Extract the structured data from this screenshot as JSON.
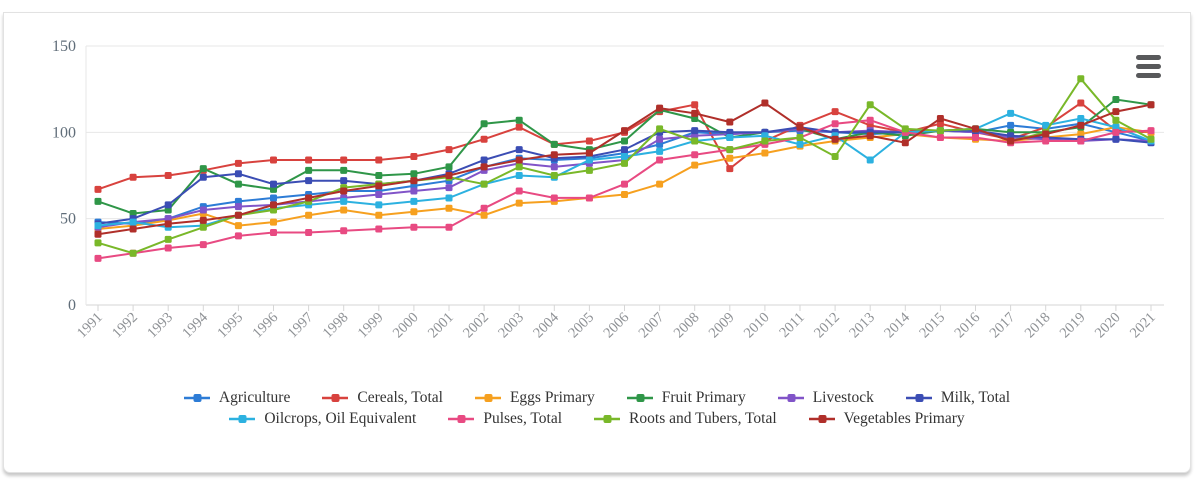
{
  "card": {
    "background": "#ffffff",
    "border_color": "#e2e2e2"
  },
  "menu": {
    "icon": "hamburger-icon",
    "color": "#58595b"
  },
  "axis": {
    "y_label_color": "#606d79",
    "x_label_color": "#8f9296",
    "grid_color": "#e7e7e7",
    "axis_line_color": "#d6d6d6"
  },
  "chart_data": {
    "type": "line",
    "title": "",
    "xlabel": "",
    "ylabel": "",
    "ylim": [
      0,
      150
    ],
    "yticks": [
      0,
      50,
      100,
      150
    ],
    "grid": true,
    "legend_position": "bottom",
    "legend_rows": [
      6,
      4
    ],
    "x": [
      1991,
      1992,
      1993,
      1994,
      1995,
      1996,
      1997,
      1998,
      1999,
      2000,
      2001,
      2002,
      2003,
      2004,
      2005,
      2006,
      2007,
      2008,
      2009,
      2010,
      2011,
      2012,
      2013,
      2014,
      2015,
      2016,
      2017,
      2018,
      2019,
      2020,
      2021
    ],
    "series": [
      {
        "name": "Agriculture",
        "color": "#2d7cd6",
        "values": [
          48,
          47,
          50,
          57,
          60,
          62,
          64,
          66,
          66,
          69,
          72,
          80,
          85,
          84,
          85,
          88,
          93,
          100,
          99,
          100,
          101,
          100,
          99,
          100,
          101,
          100,
          104,
          102,
          105,
          100,
          95
        ]
      },
      {
        "name": "Cereals, Total",
        "color": "#d8423e",
        "values": [
          67,
          74,
          75,
          78,
          82,
          84,
          84,
          84,
          84,
          86,
          90,
          96,
          103,
          93,
          95,
          100,
          112,
          116,
          79,
          95,
          104,
          112,
          104,
          100,
          105,
          100,
          96,
          103,
          117,
          101,
          100
        ]
      },
      {
        "name": "Eggs Primary",
        "color": "#f6a01f",
        "values": [
          44,
          46,
          49,
          53,
          46,
          48,
          52,
          55,
          52,
          54,
          56,
          52,
          59,
          60,
          62,
          64,
          70,
          81,
          85,
          88,
          92,
          95,
          97,
          99,
          97,
          96,
          95,
          97,
          99,
          103,
          100
        ]
      },
      {
        "name": "Fruit Primary",
        "color": "#2f9648",
        "values": [
          60,
          53,
          55,
          79,
          70,
          67,
          78,
          78,
          75,
          76,
          80,
          105,
          107,
          93,
          90,
          95,
          113,
          108,
          97,
          100,
          102,
          96,
          100,
          98,
          101,
          102,
          100,
          100,
          103,
          119,
          116
        ]
      },
      {
        "name": "Livestock",
        "color": "#8154c8",
        "values": [
          45,
          48,
          50,
          55,
          57,
          58,
          60,
          62,
          64,
          66,
          68,
          78,
          82,
          80,
          82,
          84,
          96,
          98,
          99,
          100,
          102,
          100,
          101,
          100,
          101,
          100,
          97,
          96,
          95,
          96,
          95
        ]
      },
      {
        "name": "Milk, Total",
        "color": "#3b4db4",
        "values": [
          47,
          50,
          58,
          74,
          76,
          70,
          72,
          72,
          70,
          72,
          76,
          84,
          90,
          85,
          86,
          90,
          100,
          101,
          100,
          100,
          103,
          100,
          100,
          100,
          101,
          101,
          98,
          97,
          96,
          96,
          94
        ]
      },
      {
        "name": "Oilcrops, Oil Equivalent",
        "color": "#2cb1e0",
        "values": [
          46,
          48,
          45,
          46,
          52,
          56,
          58,
          60,
          58,
          60,
          62,
          70,
          75,
          74,
          84,
          86,
          89,
          95,
          97,
          98,
          93,
          98,
          84,
          100,
          101,
          102,
          111,
          104,
          108,
          103,
          95
        ]
      },
      {
        "name": "Pulses, Total",
        "color": "#e84a82",
        "values": [
          27,
          30,
          33,
          35,
          40,
          42,
          42,
          43,
          44,
          45,
          45,
          56,
          66,
          62,
          62,
          70,
          84,
          87,
          90,
          93,
          97,
          105,
          107,
          100,
          97,
          97,
          94,
          95,
          95,
          100,
          101
        ]
      },
      {
        "name": "Roots and Tubers, Total",
        "color": "#79b829",
        "values": [
          36,
          30,
          38,
          45,
          52,
          55,
          60,
          68,
          70,
          72,
          74,
          70,
          80,
          75,
          78,
          82,
          102,
          95,
          90,
          95,
          97,
          86,
          116,
          102,
          101,
          102,
          95,
          100,
          131,
          107,
          96
        ]
      },
      {
        "name": "Vegetables Primary",
        "color": "#b02f2a",
        "values": [
          41,
          44,
          47,
          49,
          52,
          58,
          62,
          66,
          69,
          72,
          75,
          80,
          84,
          87,
          88,
          101,
          114,
          111,
          106,
          117,
          103,
          96,
          98,
          94,
          108,
          102,
          95,
          99,
          104,
          112,
          116
        ]
      }
    ]
  }
}
